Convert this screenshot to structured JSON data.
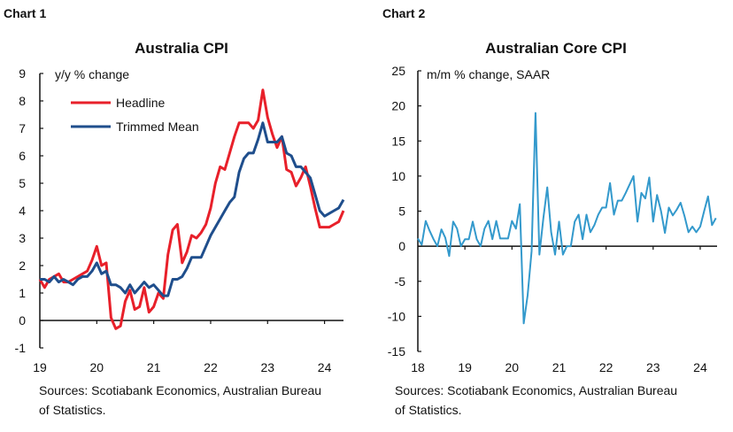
{
  "chart_data": [
    {
      "type": "line",
      "label": "Chart 1",
      "title": "Australia CPI",
      "ylabel": "y/y % change",
      "xlabel": "",
      "ylim": [
        -1,
        9
      ],
      "yticks": [
        "-1",
        "0",
        "1",
        "2",
        "3",
        "4",
        "5",
        "6",
        "7",
        "8",
        "9"
      ],
      "xticks": [
        "19",
        "20",
        "21",
        "22",
        "23",
        "24"
      ],
      "legend": "top-left",
      "grid": false,
      "x_start": "2019-01",
      "x_frequency": "monthly",
      "source": "Sources: Scotiabank Economics, Australian Bureau of Statistics.",
      "series": [
        {
          "name": "Headline",
          "color": "#e8202a",
          "values": [
            1.5,
            1.2,
            1.5,
            1.6,
            1.7,
            1.4,
            1.4,
            1.5,
            1.6,
            1.7,
            1.8,
            2.2,
            2.7,
            2.0,
            2.1,
            0.1,
            -0.3,
            -0.2,
            0.7,
            1.1,
            0.4,
            0.5,
            1.2,
            0.3,
            0.5,
            1.0,
            0.8,
            2.4,
            3.3,
            3.5,
            2.1,
            2.5,
            3.1,
            3.0,
            3.2,
            3.5,
            4.1,
            5.0,
            5.6,
            5.5,
            6.1,
            6.7,
            7.2,
            7.2,
            7.2,
            7.0,
            7.3,
            8.4,
            7.4,
            6.8,
            6.3,
            6.7,
            5.5,
            5.4,
            4.9,
            5.2,
            5.6,
            4.9,
            4.1,
            3.4,
            3.4,
            3.4,
            3.5,
            3.6,
            4.0
          ]
        },
        {
          "name": "Trimmed Mean",
          "color": "#1f4e8c",
          "values": [
            1.5,
            1.5,
            1.4,
            1.6,
            1.4,
            1.5,
            1.4,
            1.3,
            1.5,
            1.6,
            1.6,
            1.8,
            2.1,
            1.7,
            1.8,
            1.3,
            1.3,
            1.2,
            1.0,
            1.3,
            1.0,
            1.2,
            1.4,
            1.2,
            1.3,
            1.1,
            0.9,
            0.9,
            1.5,
            1.5,
            1.6,
            1.9,
            2.3,
            2.3,
            2.3,
            2.7,
            3.1,
            3.4,
            3.7,
            4.0,
            4.3,
            4.5,
            5.4,
            5.9,
            6.1,
            6.1,
            6.6,
            7.2,
            6.5,
            6.5,
            6.5,
            6.7,
            6.1,
            6.0,
            5.6,
            5.6,
            5.4,
            5.2,
            4.6,
            4.0,
            3.8,
            3.9,
            4.0,
            4.1,
            4.4
          ]
        }
      ]
    },
    {
      "type": "line",
      "label": "Chart 2",
      "title": "Australian Core CPI",
      "ylabel": "m/m % change, SAAR",
      "xlabel": "",
      "ylim": [
        -15,
        25
      ],
      "yticks": [
        "-15",
        "-10",
        "-5",
        "0",
        "5",
        "10",
        "15",
        "20",
        "25"
      ],
      "xticks": [
        "18",
        "19",
        "20",
        "21",
        "22",
        "23",
        "24"
      ],
      "grid": false,
      "x_start": "2018-01",
      "x_frequency": "monthly",
      "source": "Sources: Scotiabank Economics, Australian Bureau of Statistics.",
      "series": [
        {
          "color": "#3399cc",
          "values": [
            1.1,
            0.2,
            3.6,
            2.2,
            1.0,
            0.0,
            2.4,
            1.2,
            -1.4,
            3.5,
            2.5,
            0.0,
            1.0,
            1.0,
            3.5,
            1.0,
            0.0,
            2.5,
            3.6,
            1.0,
            3.6,
            1.1,
            1.1,
            1.1,
            3.6,
            2.5,
            6.0,
            -11.0,
            -7.0,
            -0.7,
            19.0,
            -1.2,
            4.0,
            8.4,
            2.0,
            -1.2,
            3.5,
            -1.2,
            0.0,
            0.0,
            3.5,
            4.5,
            1.0,
            4.5,
            2.0,
            3.0,
            4.5,
            5.5,
            5.5,
            9.0,
            4.5,
            6.5,
            6.5,
            7.6,
            8.8,
            10.0,
            3.5,
            7.6,
            6.8,
            9.8,
            3.5,
            7.3,
            5.0,
            1.9,
            5.5,
            4.4,
            5.2,
            6.2,
            4.3,
            2.0,
            2.8,
            2.0,
            2.8,
            5.0,
            7.1,
            3.0,
            4.0
          ]
        }
      ]
    }
  ]
}
